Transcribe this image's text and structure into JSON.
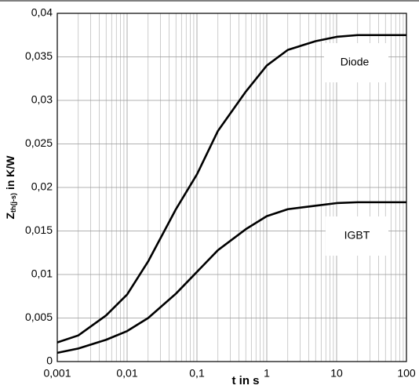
{
  "chart_data": {
    "type": "line",
    "x_label": "t in s",
    "y_label": {
      "main": "Z",
      "sub": "th(j-s)",
      "rest": " in K/W"
    },
    "x": [
      0.001,
      0.002,
      0.005,
      0.01,
      0.02,
      0.05,
      0.1,
      0.2,
      0.5,
      1,
      2,
      5,
      10,
      20,
      50,
      100
    ],
    "series": [
      {
        "name": "Diode",
        "color": "#000000",
        "values": [
          0.0022,
          0.003,
          0.0053,
          0.0077,
          0.0115,
          0.0175,
          0.0215,
          0.0265,
          0.031,
          0.034,
          0.0358,
          0.0368,
          0.0373,
          0.0375,
          0.0375,
          0.0375
        ]
      },
      {
        "name": "IGBT",
        "color": "#000000",
        "values": [
          0.001,
          0.0015,
          0.0025,
          0.0035,
          0.005,
          0.0078,
          0.0103,
          0.0128,
          0.0152,
          0.0167,
          0.0175,
          0.0179,
          0.0182,
          0.0183,
          0.0183,
          0.0183
        ]
      }
    ],
    "xlim": [
      0.001,
      100
    ],
    "xticks": [
      {
        "value": 0.001,
        "label": "0,001"
      },
      {
        "value": 0.01,
        "label": "0,01"
      },
      {
        "value": 0.1,
        "label": "0,1"
      },
      1,
      10,
      100
    ],
    "ylim": [
      0,
      0.04
    ],
    "yticks": [
      0,
      {
        "value": 0.005,
        "label": "0,005"
      },
      {
        "value": 0.01,
        "label": "0,01"
      },
      {
        "value": 0.015,
        "label": "0,015"
      },
      {
        "value": 0.02,
        "label": "0,02"
      },
      {
        "value": 0.025,
        "label": "0,025"
      },
      {
        "value": 0.03,
        "label": "0,03"
      },
      {
        "value": 0.035,
        "label": "0,035"
      },
      {
        "value": 0.04,
        "label": "0,04"
      }
    ],
    "x_log": true,
    "grid": true
  }
}
